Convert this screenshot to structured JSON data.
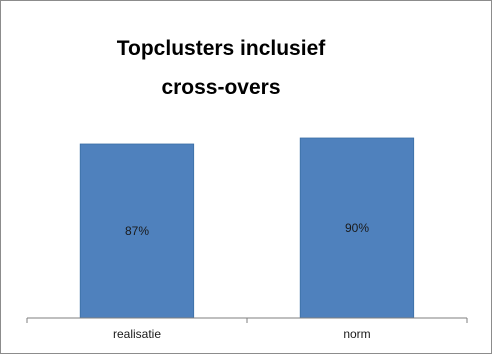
{
  "chart_data": {
    "type": "bar",
    "title_lines": [
      "Topclusters inclusief",
      "cross-overs"
    ],
    "categories": [
      "realisatie",
      "norm"
    ],
    "values": [
      87,
      90
    ],
    "data_labels": [
      "87%",
      "90%"
    ],
    "ylim": [
      0,
      100
    ],
    "grid": false,
    "legend": "none",
    "bar_color": "#4f81bd",
    "bar_border_color": "#3a6ea5",
    "axis_color": "#7f7f7f"
  }
}
